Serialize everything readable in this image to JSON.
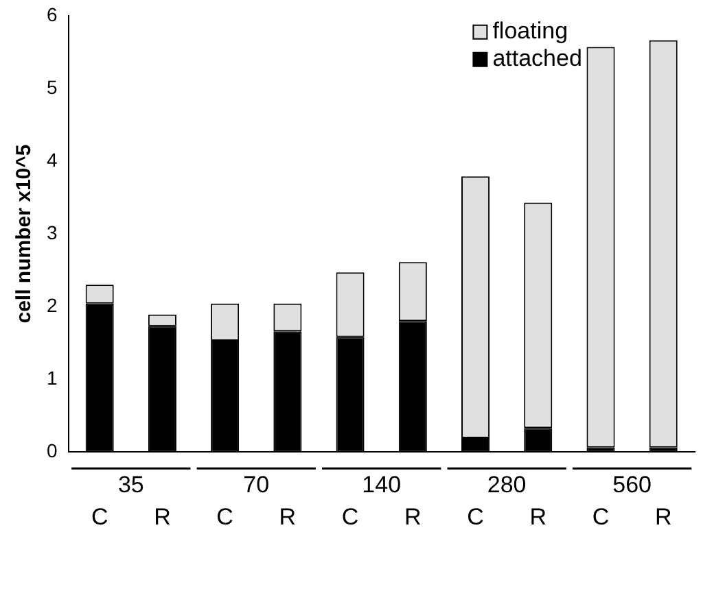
{
  "chart_data": {
    "type": "bar",
    "stacked": true,
    "ylabel": "cell number x10^5",
    "categories": [
      "C",
      "R",
      "C",
      "R",
      "C",
      "R",
      "C",
      "R",
      "C",
      "R"
    ],
    "series": [
      {
        "name": "attached",
        "color": "#000000",
        "values": [
          2.04,
          1.73,
          1.53,
          1.66,
          1.58,
          1.8,
          0.19,
          0.33,
          0.06,
          0.06
        ]
      },
      {
        "name": "floating",
        "color": "#e0e0e0",
        "values": [
          0.26,
          0.16,
          0.51,
          0.38,
          0.89,
          0.81,
          3.6,
          3.1,
          5.51,
          5.6
        ]
      }
    ],
    "annotations": [
      "35",
      "70",
      "140",
      "280",
      "560"
    ],
    "ylim": [
      0,
      6
    ],
    "yticks": [
      0,
      1,
      2,
      3,
      4,
      5,
      6
    ],
    "grid": false,
    "legend": "top right"
  }
}
